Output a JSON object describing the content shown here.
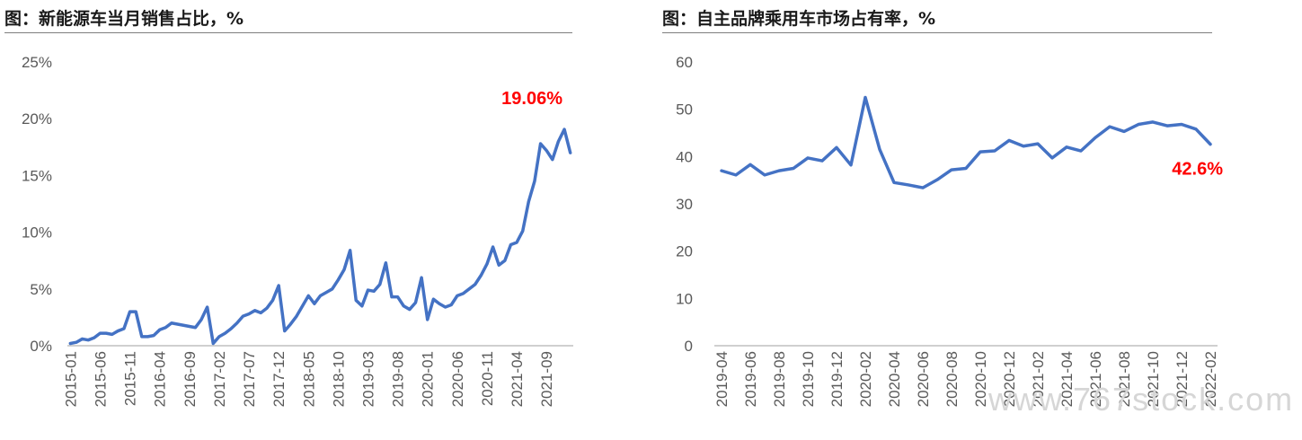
{
  "colors": {
    "line": "#4472c4",
    "annotation": "#ff0000",
    "axis": "#bfbfbf",
    "tick_text": "#595959"
  },
  "watermark": "www.767stock.com",
  "chart_data": [
    {
      "type": "line",
      "title": "图：新能源车当月销售占比，%",
      "ylim": [
        0,
        25
      ],
      "yticks": [
        0,
        5,
        10,
        15,
        20,
        25
      ],
      "ytick_labels": [
        "0%",
        "5%",
        "10%",
        "15%",
        "20%",
        "25%"
      ],
      "x_start": "2015-01",
      "xtick_labels": [
        "2015-01",
        "2015-06",
        "2015-11",
        "2016-04",
        "2016-09",
        "2017-02",
        "2017-07",
        "2017-12",
        "2018-05",
        "2018-10",
        "2019-03",
        "2019-08",
        "2020-01",
        "2020-06",
        "2020-11",
        "2021-04",
        "2021-09"
      ],
      "xtick_indices": [
        0,
        5,
        10,
        15,
        20,
        25,
        30,
        35,
        40,
        45,
        50,
        55,
        60,
        65,
        70,
        75,
        80
      ],
      "values": [
        0.2,
        0.3,
        0.6,
        0.5,
        0.7,
        1.1,
        1.1,
        1.0,
        1.3,
        1.5,
        3.0,
        3.0,
        0.8,
        0.8,
        0.9,
        1.4,
        1.6,
        2.0,
        1.9,
        1.8,
        1.7,
        1.6,
        2.3,
        3.4,
        0.2,
        0.8,
        1.1,
        1.5,
        2.0,
        2.6,
        2.8,
        3.1,
        2.9,
        3.3,
        4.0,
        5.3,
        1.3,
        1.9,
        2.6,
        3.5,
        4.4,
        3.7,
        4.4,
        4.7,
        5.0,
        5.8,
        6.7,
        8.4,
        4.0,
        3.5,
        4.9,
        4.8,
        5.4,
        7.3,
        4.3,
        4.3,
        3.5,
        3.2,
        3.8,
        6.0,
        2.3,
        4.1,
        3.7,
        3.4,
        3.6,
        4.4,
        4.6,
        5.0,
        5.4,
        6.2,
        7.2,
        8.7,
        7.1,
        7.5,
        8.9,
        9.1,
        10.1,
        12.7,
        14.5,
        17.8,
        17.2,
        16.4,
        18.0,
        19.06,
        17.0
      ],
      "annotation": {
        "text": "19.06%",
        "index": 83,
        "value": 19.06
      }
    },
    {
      "type": "line",
      "title": "图：自主品牌乘用车市场占有率，%",
      "ylim": [
        0,
        60
      ],
      "yticks": [
        0,
        10,
        20,
        30,
        40,
        50,
        60
      ],
      "ytick_labels": [
        "0",
        "10",
        "20",
        "30",
        "40",
        "50",
        "60"
      ],
      "x_start": "2019-04",
      "xtick_labels": [
        "2019-04",
        "2019-06",
        "2019-08",
        "2019-10",
        "2019-12",
        "2020-02",
        "2020-04",
        "2020-06",
        "2020-08",
        "2020-10",
        "2020-12",
        "2021-02",
        "2021-04",
        "2021-06",
        "2021-08",
        "2021-10",
        "2021-12",
        "2022-02"
      ],
      "xtick_indices": [
        0,
        2,
        4,
        6,
        8,
        10,
        12,
        14,
        16,
        18,
        20,
        22,
        24,
        26,
        28,
        30,
        32,
        34
      ],
      "values": [
        37.0,
        36.1,
        38.3,
        36.1,
        37.0,
        37.5,
        39.7,
        39.1,
        41.9,
        38.2,
        52.5,
        41.5,
        34.5,
        34.0,
        33.4,
        35.1,
        37.2,
        37.5,
        41.0,
        41.2,
        43.4,
        42.2,
        42.7,
        39.7,
        42.0,
        41.2,
        44.0,
        46.3,
        45.3,
        46.8,
        47.3,
        46.5,
        46.8,
        45.8,
        42.6
      ],
      "annotation": {
        "text": "42.6%",
        "index": 34,
        "value": 42.6
      }
    }
  ]
}
